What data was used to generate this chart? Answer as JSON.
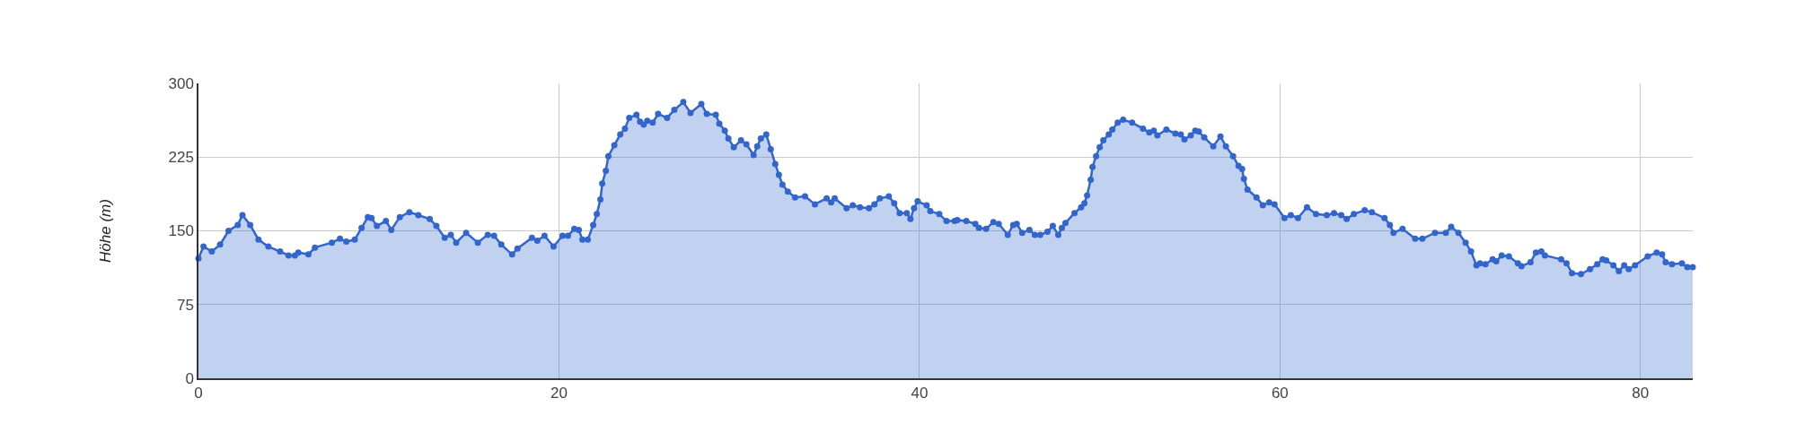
{
  "chart_data": {
    "type": "area",
    "ylabel": "Höhe (m)",
    "xlim": [
      0,
      82.9
    ],
    "ylim": [
      0,
      300
    ],
    "xticks": [
      0,
      20,
      40,
      60,
      80
    ],
    "yticks": [
      0,
      75,
      150,
      225,
      300
    ],
    "grid": true,
    "marker": "circle",
    "line_style": "solid",
    "series": [
      {
        "color": "#3366cc",
        "x": [
          0,
          0.28,
          0.74,
          1.2,
          1.67,
          2.18,
          2.44,
          2.87,
          3.33,
          3.88,
          4.53,
          5.0,
          5.35,
          5.54,
          6.1,
          6.46,
          7.4,
          7.85,
          8.2,
          8.67,
          9.05,
          9.4,
          9.6,
          9.9,
          10.4,
          10.7,
          11.17,
          11.7,
          12.2,
          12.83,
          13.2,
          13.66,
          14.0,
          14.3,
          14.85,
          15.5,
          16.05,
          16.4,
          16.8,
          17.4,
          17.7,
          18.5,
          18.8,
          19.2,
          19.7,
          20.2,
          20.5,
          20.85,
          21.1,
          21.3,
          21.6,
          21.9,
          22.1,
          22.3,
          22.4,
          22.6,
          22.74,
          23.07,
          23.4,
          23.66,
          23.9,
          24.3,
          24.5,
          24.7,
          24.9,
          25.2,
          25.5,
          26.0,
          26.4,
          26.9,
          27.3,
          27.9,
          28.2,
          28.7,
          28.9,
          29.2,
          29.4,
          29.7,
          30.1,
          30.4,
          30.8,
          31.0,
          31.2,
          31.5,
          31.75,
          32.0,
          32.2,
          32.4,
          32.7,
          33.1,
          33.65,
          34.2,
          34.85,
          35.1,
          35.3,
          35.96,
          36.3,
          36.7,
          37.2,
          37.5,
          37.8,
          38.3,
          38.6,
          38.9,
          39.3,
          39.5,
          39.7,
          39.9,
          40.4,
          40.6,
          41.1,
          41.5,
          41.95,
          42.1,
          42.6,
          43.1,
          43.3,
          43.7,
          44.1,
          44.4,
          44.9,
          45.2,
          45.4,
          45.7,
          46.1,
          46.4,
          46.7,
          47.1,
          47.4,
          47.7,
          47.9,
          48.1,
          48.6,
          48.97,
          49.15,
          49.3,
          49.5,
          49.6,
          49.8,
          50.0,
          50.2,
          50.5,
          50.7,
          51.0,
          51.3,
          51.8,
          52.4,
          52.75,
          53.0,
          53.2,
          53.7,
          54.2,
          54.5,
          54.7,
          55.05,
          55.3,
          55.5,
          55.8,
          56.3,
          56.7,
          57.0,
          57.4,
          57.7,
          57.9,
          58.0,
          58.2,
          58.7,
          59.05,
          59.4,
          59.7,
          60.25,
          60.6,
          61.0,
          61.5,
          62.0,
          62.6,
          63.0,
          63.4,
          63.7,
          64.1,
          64.7,
          65.1,
          65.8,
          66.1,
          66.3,
          66.8,
          67.5,
          67.9,
          68.6,
          69.2,
          69.5,
          69.9,
          70.3,
          70.6,
          70.9,
          71.1,
          71.4,
          71.8,
          72.0,
          72.3,
          72.7,
          73.2,
          73.4,
          73.9,
          74.2,
          74.5,
          74.7,
          75.6,
          75.9,
          76.2,
          76.7,
          77.2,
          77.6,
          77.9,
          78.1,
          78.5,
          78.8,
          79.1,
          79.35,
          79.7,
          80.4,
          80.9,
          81.2,
          81.4,
          81.75,
          82.3,
          82.6,
          82.9
        ],
        "values": [
          122,
          134,
          129,
          136,
          150,
          156,
          166,
          156,
          141,
          134,
          129,
          125,
          125,
          128,
          126,
          133,
          138,
          142,
          139,
          141,
          153,
          164,
          163,
          155,
          160,
          151,
          164,
          169,
          166,
          162,
          155,
          143,
          146,
          138,
          148,
          138,
          146,
          145,
          136,
          126,
          132,
          143,
          140,
          145,
          134,
          145,
          145,
          152,
          151,
          141,
          141,
          156,
          167,
          182,
          198,
          211,
          226,
          237,
          248,
          254,
          265,
          268,
          261,
          258,
          262,
          260,
          269,
          265,
          273,
          281,
          270,
          279,
          269,
          268,
          259,
          252,
          244,
          235,
          242,
          238,
          227,
          236,
          244,
          248,
          233,
          218,
          207,
          197,
          190,
          184,
          185,
          177,
          183,
          179,
          183,
          173,
          176,
          174,
          173,
          177,
          183,
          185,
          178,
          168,
          168,
          162,
          173,
          180,
          176,
          170,
          167,
          160,
          160,
          161,
          160,
          157,
          153,
          152,
          159,
          157,
          146,
          156,
          157,
          148,
          151,
          146,
          146,
          149,
          155,
          146,
          153,
          158,
          168,
          174,
          178,
          186,
          202,
          215,
          226,
          235,
          242,
          248,
          253,
          260,
          263,
          260,
          254,
          250,
          252,
          247,
          253,
          249,
          248,
          243,
          247,
          252,
          251,
          245,
          236,
          246,
          236,
          226,
          216,
          213,
          203,
          192,
          184,
          176,
          179,
          177,
          163,
          166,
          163,
          174,
          167,
          166,
          168,
          166,
          162,
          167,
          171,
          169,
          163,
          156,
          148,
          152,
          142,
          142,
          148,
          148,
          154,
          148,
          138,
          129,
          115,
          117,
          116,
          121,
          119,
          125,
          124,
          117,
          114,
          118,
          128,
          129,
          125,
          121,
          117,
          107,
          106,
          111,
          116,
          121,
          120,
          115,
          109,
          115,
          111,
          115,
          124,
          128,
          126,
          118,
          116,
          117,
          113,
          113
        ]
      }
    ]
  }
}
